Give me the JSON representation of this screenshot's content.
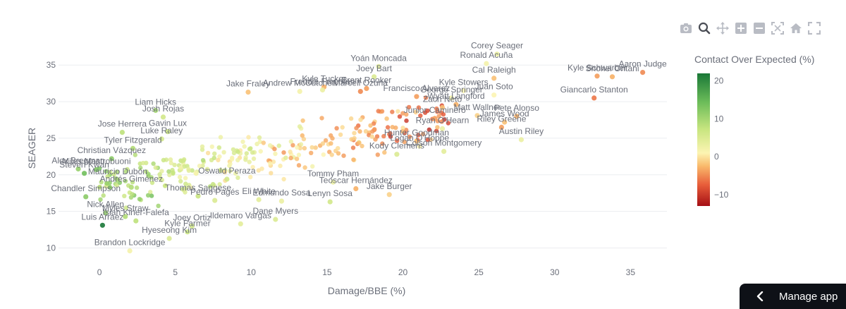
{
  "colors": {
    "grid": "#ebedf0",
    "text": "#6b6f7a",
    "scale": [
      "#a50f15",
      "#e85d3a",
      "#f9b96b",
      "#fcf4b2",
      "#c7e57f",
      "#6dbd5a",
      "#1a7837"
    ],
    "manage_bg": "#0e1117"
  },
  "modebar": {
    "icons": [
      "camera-icon",
      "zoom-icon",
      "pan-icon",
      "zoom-in-icon",
      "zoom-out-icon",
      "autoscale-icon",
      "home-icon",
      "fullscreen-icon"
    ]
  },
  "manage_app": {
    "label": "Manage app",
    "icon": "chevron-left-icon"
  },
  "chart_data": {
    "type": "scatter",
    "xlabel": "Damage/BBE (%)",
    "ylabel": "SEAGER",
    "xlim": [
      -2.7,
      37.4
    ],
    "ylim": [
      8.6,
      38.3
    ],
    "xticks": [
      0,
      5,
      10,
      15,
      20,
      25,
      30,
      35
    ],
    "yticks": [
      10,
      15,
      20,
      25,
      30,
      35
    ],
    "grid": true,
    "colorbar": {
      "title": "Contact Over Expected (%)",
      "range": [
        -13,
        22
      ],
      "ticks": [
        20,
        10,
        0,
        -10
      ],
      "placement": "right"
    },
    "labeled_points": [
      {
        "name": "Corey Seager",
        "x": 26.2,
        "y": 36.5,
        "c": 3
      },
      {
        "name": "Ronald Acuña",
        "x": 25.5,
        "y": 35.2,
        "c": 2
      },
      {
        "name": "Aaron Judge",
        "x": 35.8,
        "y": 34.0,
        "c": -5
      },
      {
        "name": "Kyle Schwarber",
        "x": 32.8,
        "y": 33.5,
        "c": -4
      },
      {
        "name": "Shohei Ohtani",
        "x": 33.8,
        "y": 33.4,
        "c": -3
      },
      {
        "name": "Yoán Moncada",
        "x": 18.4,
        "y": 34.8,
        "c": 4
      },
      {
        "name": "Joey Bart",
        "x": 18.1,
        "y": 33.4,
        "c": 5
      },
      {
        "name": "Cal Raleigh",
        "x": 26.0,
        "y": 33.2,
        "c": -2
      },
      {
        "name": "Juan Soto",
        "x": 26.0,
        "y": 30.9,
        "c": 1
      },
      {
        "name": "Giancarlo Stanton",
        "x": 32.6,
        "y": 30.5,
        "c": -6
      },
      {
        "name": "Jake Fraley",
        "x": 9.8,
        "y": 31.3,
        "c": -2
      },
      {
        "name": "Kyle Tucker",
        "x": 14.8,
        "y": 32.0,
        "c": -3
      },
      {
        "name": "Brent Rooker",
        "x": 17.6,
        "y": 31.8,
        "c": -4
      },
      {
        "name": "Andrew McCutchen",
        "x": 13.2,
        "y": 31.4,
        "c": 2
      },
      {
        "name": "Freddie Freeman",
        "x": 14.7,
        "y": 31.6,
        "c": 3
      },
      {
        "name": "Marcell Ozuna",
        "x": 17.2,
        "y": 31.4,
        "c": -5
      },
      {
        "name": "Francisco Alvarez",
        "x": 20.9,
        "y": 30.7,
        "c": -4
      },
      {
        "name": "George Springer",
        "x": 23.2,
        "y": 30.5,
        "c": 2
      },
      {
        "name": "Kyle Stowers",
        "x": 24.0,
        "y": 31.5,
        "c": 1
      },
      {
        "name": "Wyatt Langford",
        "x": 23.5,
        "y": 29.6,
        "c": -3
      },
      {
        "name": "Zach Neto",
        "x": 22.6,
        "y": 29.2,
        "c": -2
      },
      {
        "name": "Liam Hicks",
        "x": 3.7,
        "y": 28.8,
        "c": 10
      },
      {
        "name": "Josh Rojas",
        "x": 4.2,
        "y": 27.9,
        "c": 6
      },
      {
        "name": "Junior Caminero",
        "x": 22.1,
        "y": 27.7,
        "c": -4
      },
      {
        "name": "Matt Wallner",
        "x": 24.9,
        "y": 28.1,
        "c": -1
      },
      {
        "name": "Pete Alonso",
        "x": 27.5,
        "y": 28.0,
        "c": -3
      },
      {
        "name": "James Wood",
        "x": 26.7,
        "y": 27.2,
        "c": -2
      },
      {
        "name": "Ryan O'Hearn",
        "x": 22.6,
        "y": 26.3,
        "c": 3
      },
      {
        "name": "Riley Greene",
        "x": 26.5,
        "y": 26.5,
        "c": -4
      },
      {
        "name": "Jose Herrera",
        "x": 1.5,
        "y": 25.8,
        "c": 8
      },
      {
        "name": "Gavin Lux",
        "x": 4.5,
        "y": 25.9,
        "c": 7
      },
      {
        "name": "Luke Raley",
        "x": 4.1,
        "y": 24.9,
        "c": 6
      },
      {
        "name": "Austin Riley",
        "x": 27.8,
        "y": 24.8,
        "c": 3
      },
      {
        "name": "Hunter Goodman",
        "x": 20.9,
        "y": 24.6,
        "c": -2
      },
      {
        "name": "Logan O'Hoppe",
        "x": 21.1,
        "y": 23.9,
        "c": 1
      },
      {
        "name": "Colson Montgomery",
        "x": 22.7,
        "y": 23.2,
        "c": 4
      },
      {
        "name": "Tyler Fitzgerald",
        "x": 2.2,
        "y": 23.6,
        "c": 9
      },
      {
        "name": "Kody Clemens",
        "x": 19.6,
        "y": 22.8,
        "c": 5
      },
      {
        "name": "Christian Vázquez",
        "x": 0.8,
        "y": 22.2,
        "c": 12
      },
      {
        "name": "Miles Mastrobuoni",
        "x": -0.2,
        "y": 20.7,
        "c": 13
      },
      {
        "name": "Alex Bregman",
        "x": -1.4,
        "y": 20.8,
        "c": 11
      },
      {
        "name": "Steven Kwan",
        "x": -1.0,
        "y": 20.2,
        "c": 14
      },
      {
        "name": "Oswald Peraza",
        "x": 8.4,
        "y": 19.4,
        "c": 6
      },
      {
        "name": "Tommy Pham",
        "x": 15.4,
        "y": 19.0,
        "c": 3
      },
      {
        "name": "Teoscar Hernández",
        "x": 16.9,
        "y": 18.1,
        "c": -3
      },
      {
        "name": "Mauricio Dubón",
        "x": 1.2,
        "y": 19.3,
        "c": 10
      },
      {
        "name": "Andrés Giménez",
        "x": 2.1,
        "y": 18.3,
        "c": 9
      },
      {
        "name": "Jake Burger",
        "x": 19.1,
        "y": 17.3,
        "c": -1
      },
      {
        "name": "Chandler Simpson",
        "x": -0.9,
        "y": 17.0,
        "c": 12
      },
      {
        "name": "Thomas Saggese",
        "x": 6.5,
        "y": 17.1,
        "c": 7
      },
      {
        "name": "Pedro Pagés",
        "x": 7.6,
        "y": 16.5,
        "c": 5
      },
      {
        "name": "Eli White",
        "x": 10.5,
        "y": 16.6,
        "c": 4
      },
      {
        "name": "Edmundo Sosa",
        "x": 12.0,
        "y": 16.4,
        "c": 3
      },
      {
        "name": "Lenyn Sosa",
        "x": 15.2,
        "y": 16.3,
        "c": 6
      },
      {
        "name": "Nick Allen",
        "x": 0.4,
        "y": 14.8,
        "c": 11
      },
      {
        "name": "Myles Straw",
        "x": 1.7,
        "y": 14.3,
        "c": 9
      },
      {
        "name": "Isiah Kiner-Falefa",
        "x": 2.4,
        "y": 13.7,
        "c": 8
      },
      {
        "name": "Luis Arraez",
        "x": 0.2,
        "y": 13.1,
        "c": 22
      },
      {
        "name": "Dane Myers",
        "x": 11.6,
        "y": 13.9,
        "c": 5
      },
      {
        "name": "Ildemaro Vargas",
        "x": 9.3,
        "y": 13.3,
        "c": 4
      },
      {
        "name": "Joey Ortiz",
        "x": 6.1,
        "y": 13.0,
        "c": 6
      },
      {
        "name": "Kyle Farmer",
        "x": 5.8,
        "y": 12.2,
        "c": 7
      },
      {
        "name": "Hyeseong Kim",
        "x": 4.6,
        "y": 11.3,
        "c": 5
      },
      {
        "name": "Brandon Lockridge",
        "x": 2.0,
        "y": 9.6,
        "c": 2
      }
    ]
  }
}
